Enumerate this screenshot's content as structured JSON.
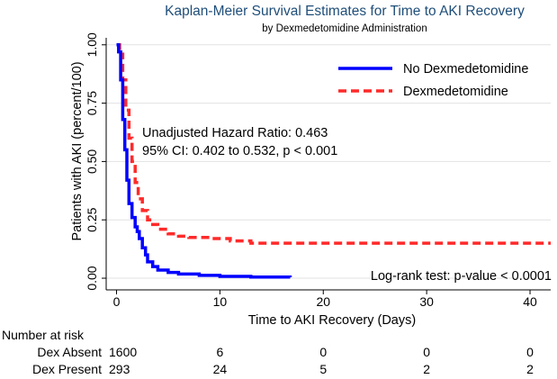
{
  "chart_data": {
    "type": "line",
    "title": "Kaplan-Meier Survival Estimates for Time to AKI Recovery",
    "subtitle": "by Dexmedetomidine Administration",
    "xlabel": "Time to AKI Recovery (Days)",
    "ylabel": "Patients with AKI (percent/100)",
    "xlim": [
      -1,
      42
    ],
    "ylim": [
      -0.05,
      1.03
    ],
    "x_ticks": [
      0,
      10,
      20,
      30,
      40
    ],
    "x_tick_labels": [
      "0",
      "10",
      "20",
      "30",
      "40"
    ],
    "y_ticks": [
      0,
      0.25,
      0.5,
      0.75,
      1.0
    ],
    "y_tick_labels": [
      "0.00",
      "0.25",
      "0.50",
      "0.75",
      "1.00"
    ],
    "grid": true,
    "legend_position": "top-right",
    "series": [
      {
        "name": "No Dexmedetomidine",
        "color": "#0000ff",
        "style": "solid",
        "points": [
          [
            0,
            1.0
          ],
          [
            0.2,
            0.97
          ],
          [
            0.4,
            0.85
          ],
          [
            0.6,
            0.68
          ],
          [
            0.8,
            0.55
          ],
          [
            1.0,
            0.42
          ],
          [
            1.2,
            0.32
          ],
          [
            1.5,
            0.26
          ],
          [
            1.8,
            0.22
          ],
          [
            2.0,
            0.2
          ],
          [
            2.2,
            0.17
          ],
          [
            2.5,
            0.13
          ],
          [
            2.8,
            0.1
          ],
          [
            3.0,
            0.07
          ],
          [
            3.5,
            0.05
          ],
          [
            4.0,
            0.035
          ],
          [
            5,
            0.025
          ],
          [
            6,
            0.018
          ],
          [
            8,
            0.012
          ],
          [
            10,
            0.008
          ],
          [
            13,
            0.005
          ],
          [
            16.8,
            0.004
          ]
        ]
      },
      {
        "name": "Dexmedetomidine",
        "color": "#ff2a2a",
        "style": "dashed",
        "points": [
          [
            0,
            1.0
          ],
          [
            0.3,
            0.96
          ],
          [
            0.6,
            0.85
          ],
          [
            0.9,
            0.72
          ],
          [
            1.2,
            0.6
          ],
          [
            1.5,
            0.5
          ],
          [
            1.8,
            0.41
          ],
          [
            2.1,
            0.34
          ],
          [
            2.5,
            0.29
          ],
          [
            3,
            0.25
          ],
          [
            3.5,
            0.23
          ],
          [
            4,
            0.21
          ],
          [
            5,
            0.19
          ],
          [
            6,
            0.18
          ],
          [
            7,
            0.175
          ],
          [
            9,
            0.17
          ],
          [
            11,
            0.16
          ],
          [
            13,
            0.15
          ],
          [
            20,
            0.15
          ],
          [
            30,
            0.15
          ],
          [
            42,
            0.15
          ]
        ]
      }
    ],
    "annotations": {
      "hazard_ratio": "Unadjusted Hazard Ratio: 0.463",
      "ci": "95% CI: 0.402 to 0.532, p < 0.001",
      "logrank": "Log-rank test: p-value < 0.0001"
    },
    "risk_table": {
      "heading": "Number at risk",
      "rows": [
        {
          "label": "Dex Absent",
          "values": [
            "1600",
            "6",
            "0",
            "0",
            "0"
          ]
        },
        {
          "label": "Dex Present",
          "values": [
            "293",
            "24",
            "5",
            "2",
            "2"
          ]
        }
      ]
    }
  }
}
